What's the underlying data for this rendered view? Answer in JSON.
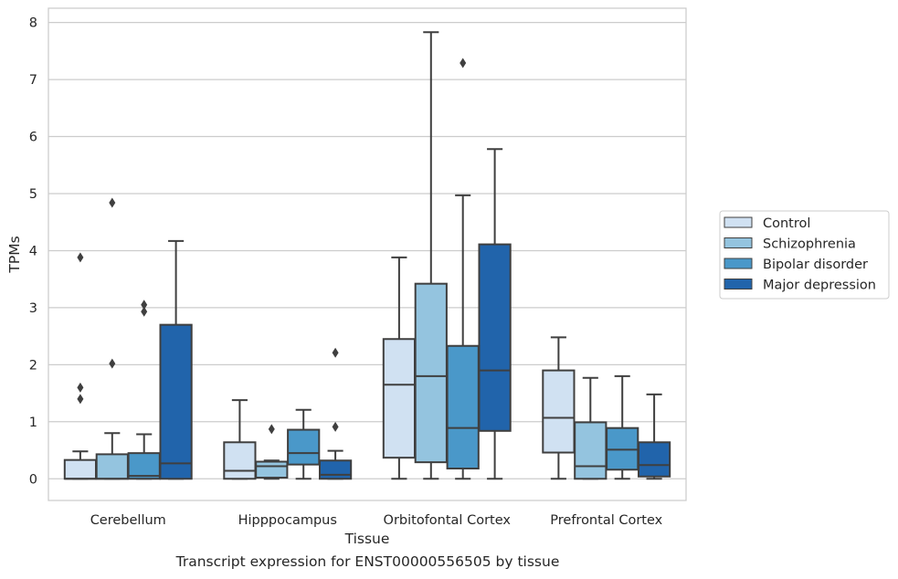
{
  "caption": "Transcript expression for ENST00000556505 by tissue",
  "chart_data": {
    "type": "box",
    "xlabel": "Tissue",
    "ylabel": "TPMs",
    "categories": [
      "Cerebellum",
      "Hipppocampus",
      "Orbitofontal Cortex",
      "Prefrontal Cortex"
    ],
    "ylim": [
      -0.38,
      8.25
    ],
    "yticks": [
      0,
      1,
      2,
      3,
      4,
      5,
      6,
      7,
      8
    ],
    "grid": true,
    "legend_position": "right",
    "series": [
      {
        "name": "Control",
        "color": "#d0e1f2",
        "boxes": [
          {
            "whislo": 0,
            "q1": 0,
            "med": 0,
            "q3": 0.33,
            "whishi": 0.48,
            "fliers": [
              3.88,
              1.6,
              1.4
            ]
          },
          {
            "whislo": 0,
            "q1": 0,
            "med": 0.14,
            "q3": 0.64,
            "whishi": 1.38,
            "fliers": []
          },
          {
            "whislo": 0,
            "q1": 0.37,
            "med": 1.65,
            "q3": 2.45,
            "whishi": 3.88,
            "fliers": []
          },
          {
            "whislo": 0,
            "q1": 0.46,
            "med": 1.07,
            "q3": 1.9,
            "whishi": 2.48,
            "fliers": []
          }
        ]
      },
      {
        "name": "Schizophrenia",
        "color": "#94c4df",
        "boxes": [
          {
            "whislo": 0,
            "q1": 0,
            "med": 0,
            "q3": 0.43,
            "whishi": 0.8,
            "fliers": [
              4.84,
              2.02
            ]
          },
          {
            "whislo": 0,
            "q1": 0.02,
            "med": 0.22,
            "q3": 0.3,
            "whishi": 0.32,
            "fliers": [
              0.87
            ]
          },
          {
            "whislo": 0,
            "q1": 0.29,
            "med": 1.8,
            "q3": 3.42,
            "whishi": 7.83,
            "fliers": []
          },
          {
            "whislo": 0,
            "q1": 0,
            "med": 0.22,
            "q3": 0.99,
            "whishi": 1.77,
            "fliers": []
          }
        ]
      },
      {
        "name": "Bipolar disorder",
        "color": "#4a98c9",
        "boxes": [
          {
            "whislo": 0,
            "q1": 0,
            "med": 0.05,
            "q3": 0.45,
            "whishi": 0.78,
            "fliers": [
              3.05,
              2.93
            ]
          },
          {
            "whislo": 0,
            "q1": 0.25,
            "med": 0.45,
            "q3": 0.86,
            "whishi": 1.21,
            "fliers": []
          },
          {
            "whislo": 0,
            "q1": 0.18,
            "med": 0.89,
            "q3": 2.33,
            "whishi": 4.97,
            "fliers": [
              7.29
            ]
          },
          {
            "whislo": 0,
            "q1": 0.16,
            "med": 0.51,
            "q3": 0.89,
            "whishi": 1.8,
            "fliers": []
          }
        ]
      },
      {
        "name": "Major depression",
        "color": "#2164ab",
        "boxes": [
          {
            "whislo": 0,
            "q1": 0,
            "med": 0.27,
            "q3": 2.7,
            "whishi": 4.17,
            "fliers": []
          },
          {
            "whislo": 0,
            "q1": 0,
            "med": 0.07,
            "q3": 0.32,
            "whishi": 0.49,
            "fliers": [
              2.21,
              0.91
            ]
          },
          {
            "whislo": 0,
            "q1": 0.84,
            "med": 1.9,
            "q3": 4.11,
            "whishi": 5.78,
            "fliers": []
          },
          {
            "whislo": 0,
            "q1": 0.04,
            "med": 0.24,
            "q3": 0.64,
            "whishi": 1.48,
            "fliers": []
          }
        ]
      }
    ]
  }
}
